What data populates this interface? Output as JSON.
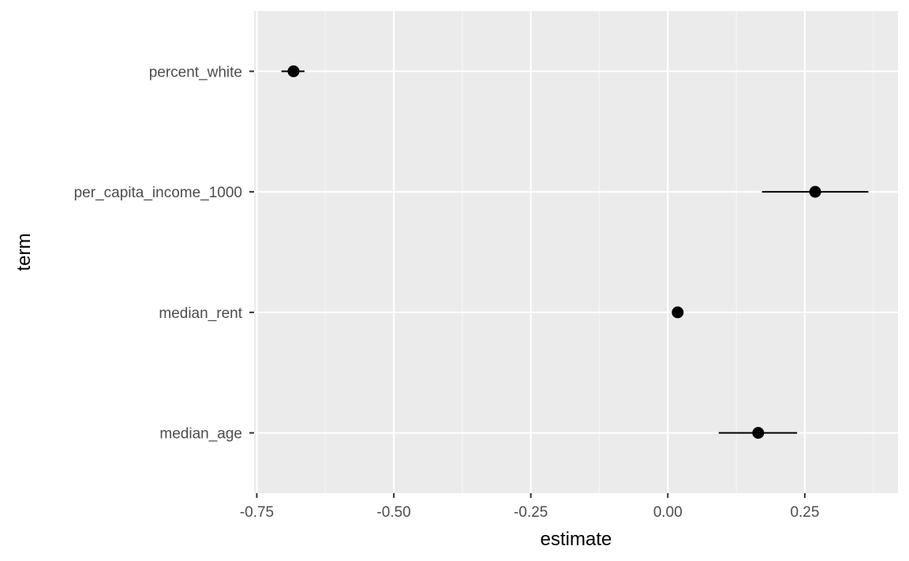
{
  "chart_data": {
    "type": "scatter",
    "subtype": "coefficient-plot-with-error-bars",
    "title": "",
    "xlabel": "estimate",
    "ylabel": "term",
    "xlim": [
      -0.755,
      0.42
    ],
    "x_ticks": [
      {
        "value": -0.75,
        "label": "-0.75"
      },
      {
        "value": -0.5,
        "label": "-0.50"
      },
      {
        "value": -0.25,
        "label": "-0.25"
      },
      {
        "value": 0.0,
        "label": "0.00"
      },
      {
        "value": 0.25,
        "label": "0.25"
      }
    ],
    "categories": [
      "percent_white",
      "per_capita_income_1000",
      "median_rent",
      "median_age"
    ],
    "series": [
      {
        "points": [
          {
            "term": "percent_white",
            "estimate": -0.683,
            "conf_low": -0.705,
            "conf_high": -0.663
          },
          {
            "term": "per_capita_income_1000",
            "estimate": 0.269,
            "conf_low": 0.172,
            "conf_high": 0.366
          },
          {
            "term": "median_rent",
            "estimate": 0.018,
            "conf_low": 0.016,
            "conf_high": 0.02
          },
          {
            "term": "median_age",
            "estimate": 0.165,
            "conf_low": 0.093,
            "conf_high": 0.236
          }
        ]
      }
    ],
    "grid": true,
    "legend": "none",
    "colors": {
      "panel_background": "#ebebeb",
      "grid_major": "#ffffff",
      "grid_minor": "#f5f5f5",
      "point": "#000000",
      "error_bar": "#000000",
      "tick_text": "#4d4d4d",
      "tick_mark": "#333333",
      "axis_title": "#000000"
    }
  }
}
